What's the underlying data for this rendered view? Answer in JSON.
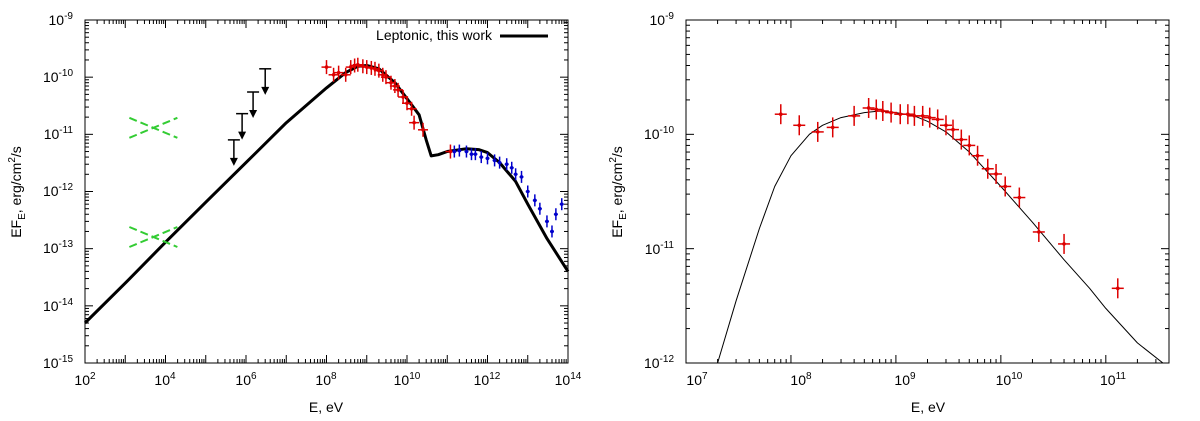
{
  "chart_data": [
    {
      "type": "scatter",
      "title": "",
      "xlabel": "E, eV",
      "ylabel": "EF_E, erg/cm^2/s",
      "xscale": "log",
      "yscale": "log",
      "xlim": [
        100,
        100000000000000.0
      ],
      "ylim": [
        1e-15,
        1e-09
      ],
      "grid": false,
      "legend_position": "top-right",
      "x_ticks": [
        "10^2",
        "10^4",
        "10^6",
        "10^8",
        "10^10",
        "10^12",
        "10^14"
      ],
      "y_ticks": [
        "10^-15",
        "10^-14",
        "10^-13",
        "10^-12",
        "10^-11",
        "10^-10",
        "10^-9"
      ],
      "legend": [
        {
          "label": "Leptonic, this work",
          "color": "#000000"
        }
      ],
      "model_curve": {
        "name": "Leptonic, this work",
        "color": "#000000",
        "x": [
          100,
          1000,
          10000.0,
          100000.0,
          1000000.0,
          10000000.0,
          100000000.0,
          300000000.0,
          600000000.0,
          1000000000.0,
          2000000000.0,
          5000000000.0,
          10000000000.0,
          20000000000.0,
          30000000000.0,
          40000000000.0,
          60000000000.0,
          100000000000.0,
          300000000000.0,
          600000000000.0,
          1000000000000.0,
          2000000000000.0,
          5000000000000.0,
          10000000000000.0,
          30000000000000.0,
          100000000000000.0
        ],
        "y": [
          5e-15,
          2.5e-14,
          1.3e-13,
          6.5e-13,
          3.2e-12,
          1.6e-11,
          6.5e-11,
          1.2e-10,
          1.55e-10,
          1.6e-10,
          1.4e-10,
          8e-11,
          4.2e-11,
          2.2e-11,
          8e-12,
          4.2e-12,
          4.4e-12,
          5e-12,
          5.6e-12,
          5.4e-12,
          4.8e-12,
          3.2e-12,
          1.5e-12,
          6e-13,
          1.5e-13,
          4e-14
        ]
      },
      "upper_limits": {
        "color": "#000000",
        "x": [
          500000.0,
          800000.0,
          1500000.0,
          3000000.0
        ],
        "y": [
          8e-12,
          2.3e-11,
          5.5e-11,
          1.4e-10
        ]
      },
      "red_points": {
        "color": "#dd0000",
        "x": [
          100000000.0,
          150000000.0,
          200000000.0,
          300000000.0,
          400000000.0,
          500000000.0,
          600000000.0,
          800000000.0,
          1000000000.0,
          1300000000.0,
          1600000000.0,
          2000000000.0,
          2500000000.0,
          3000000000.0,
          4000000000.0,
          5000000000.0,
          6000000000.0,
          8000000000.0,
          10000000000.0,
          13000000000.0,
          15000000000.0,
          25000000000.0,
          120000000000.0
        ],
        "y": [
          1.5e-10,
          1.1e-10,
          1.2e-10,
          1.1e-10,
          1.5e-10,
          1.6e-10,
          1.65e-10,
          1.55e-10,
          1.5e-10,
          1.45e-10,
          1.4e-10,
          1.3e-10,
          1.1e-10,
          1e-10,
          8e-11,
          7e-11,
          6e-11,
          4.5e-11,
          3.5e-11,
          2.8e-11,
          1.6e-11,
          1.2e-11,
          5e-12
        ]
      },
      "blue_points": {
        "color": "#0000cc",
        "x": [
          150000000000.0,
          200000000000.0,
          300000000000.0,
          400000000000.0,
          500000000000.0,
          700000000000.0,
          1000000000000.0,
          1500000000000.0,
          2000000000000.0,
          3000000000000.0,
          4000000000000.0,
          5000000000000.0,
          7000000000000.0,
          10000000000000.0,
          15000000000000.0,
          20000000000000.0,
          30000000000000.0,
          40000000000000.0,
          50000000000000.0,
          70000000000000.0
        ],
        "y": [
          5e-12,
          5.2e-12,
          5e-12,
          4.5e-12,
          4.5e-12,
          4e-12,
          3.8e-12,
          3.5e-12,
          3.2e-12,
          3e-12,
          2.6e-12,
          2e-12,
          1.8e-12,
          1e-12,
          7e-13,
          5e-13,
          3e-13,
          2e-13,
          4e-13,
          6e-13
        ]
      },
      "green_butterflies": [
        {
          "color": "#33cc33",
          "x_center": 5000,
          "y_center": 1.3e-11
        },
        {
          "color": "#33cc33",
          "x_center": 5000,
          "y_center": 1.6e-13
        }
      ]
    },
    {
      "type": "scatter",
      "title": "",
      "xlabel": "E, eV",
      "ylabel": "EF_E, erg/cm^2/s",
      "xscale": "log",
      "yscale": "log",
      "xlim": [
        10000000.0,
        400000000000.0
      ],
      "ylim": [
        1e-12,
        1e-09
      ],
      "grid": false,
      "x_ticks": [
        "10^7",
        "10^8",
        "10^9",
        "10^10",
        "10^11"
      ],
      "y_ticks": [
        "10^-12",
        "10^-11",
        "10^-10",
        "10^-9"
      ],
      "model_curve": {
        "color": "#000000",
        "x": [
          20000000.0,
          30000000.0,
          50000000.0,
          70000000.0,
          100000000.0,
          150000000.0,
          200000000.0,
          300000000.0,
          500000000.0,
          700000000.0,
          1000000000.0,
          1500000000.0,
          2000000000.0,
          3000000000.0,
          5000000000.0,
          7000000000.0,
          10000000000.0,
          20000000000.0,
          40000000000.0,
          70000000000.0,
          100000000000.0,
          200000000000.0,
          350000000000.0
        ],
        "y": [
          1e-12,
          3.5e-12,
          1.5e-11,
          3.5e-11,
          6.5e-11,
          1e-10,
          1.2e-10,
          1.4e-10,
          1.55e-10,
          1.6e-10,
          1.55e-10,
          1.45e-10,
          1.3e-10,
          1.05e-10,
          7e-11,
          5e-11,
          3.5e-11,
          1.7e-11,
          8e-12,
          4.5e-12,
          3e-12,
          1.5e-12,
          8e-13
        ]
      },
      "red_points": {
        "color": "#dd0000",
        "x": [
          80000000.0,
          120000000.0,
          180000000.0,
          250000000.0,
          400000000.0,
          550000000.0,
          650000000.0,
          750000000.0,
          900000000.0,
          1100000000.0,
          1300000000.0,
          1500000000.0,
          1800000000.0,
          2100000000.0,
          2500000000.0,
          3000000000.0,
          3500000000.0,
          4200000000.0,
          5000000000.0,
          6000000000.0,
          7500000000.0,
          9000000000.0,
          11000000000.0,
          15000000000.0,
          23000000000.0,
          40000000000.0,
          130000000000.0
        ],
        "y": [
          1.5e-10,
          1.2e-10,
          1.05e-10,
          1.15e-10,
          1.45e-10,
          1.7e-10,
          1.65e-10,
          1.6e-10,
          1.55e-10,
          1.5e-10,
          1.5e-10,
          1.45e-10,
          1.45e-10,
          1.4e-10,
          1.35e-10,
          1.2e-10,
          1.1e-10,
          9e-11,
          8e-11,
          6.5e-11,
          5e-11,
          4.5e-11,
          3.5e-11,
          2.8e-11,
          1.4e-11,
          1.1e-11,
          4.5e-12
        ]
      }
    }
  ]
}
